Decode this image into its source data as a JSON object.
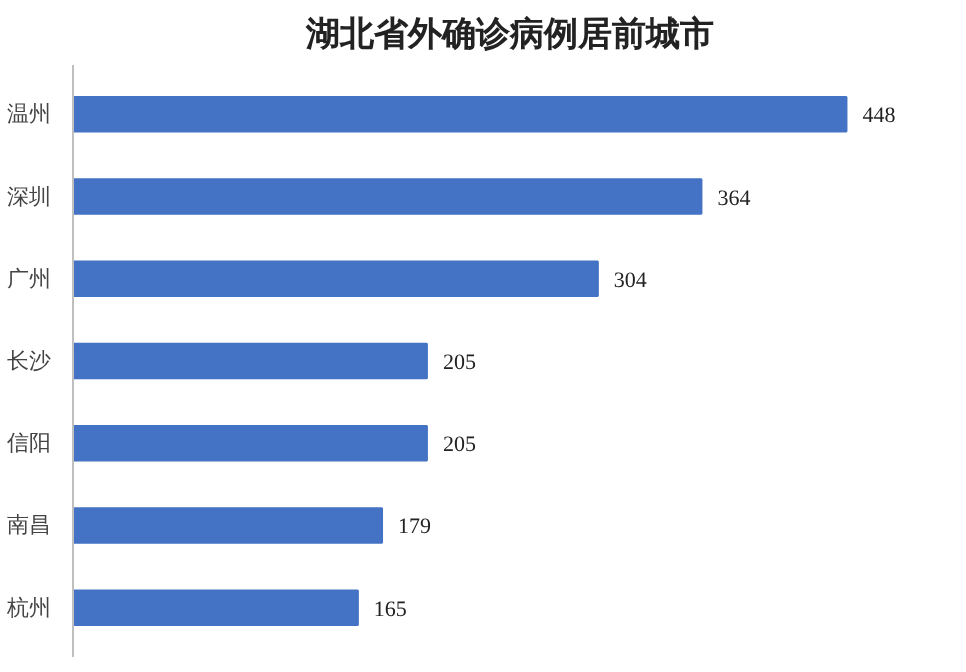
{
  "chart_data": {
    "type": "bar",
    "orientation": "horizontal",
    "title": "湖北省外确诊病例居前城市",
    "categories": [
      "温州",
      "深圳",
      "广州",
      "长沙",
      "信阳",
      "南昌",
      "杭州"
    ],
    "values": [
      448,
      364,
      304,
      205,
      205,
      179,
      165
    ],
    "color": "#4472c4",
    "data_labels": true,
    "grid": false
  }
}
